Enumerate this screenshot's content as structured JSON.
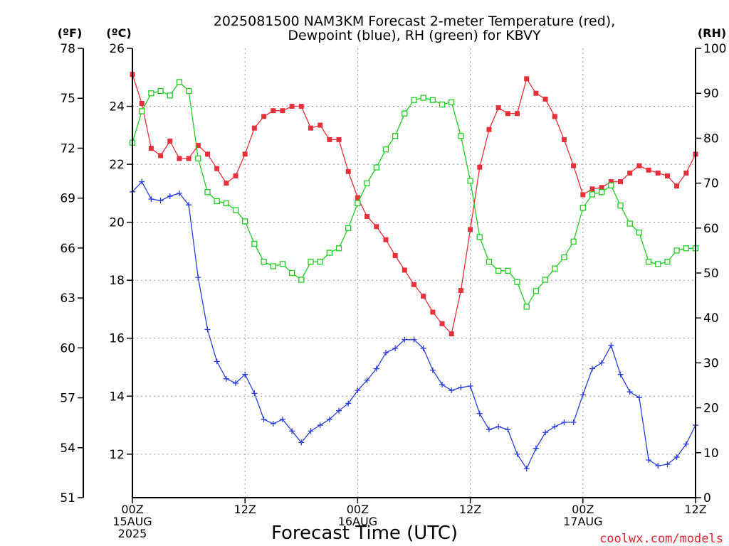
{
  "title_line1": "2025081500 NAM3KM Forecast 2-meter Temperature (red),",
  "title_line2": "Dewpoint (blue), RH (green) for KBVY",
  "unit_f": "(ºF)",
  "unit_c": "(ºC)",
  "unit_rh": "(RH)",
  "credit": "coolwx.com/models",
  "credit_color": "#e0242c",
  "chart_data": {
    "type": "line",
    "title": "2025081500 NAM3KM Forecast 2-meter Temperature (red), Dewpoint (blue), RH (green) for KBVY",
    "xlabel": "Forecast Time (UTC)",
    "x_range_hours": [
      0,
      60
    ],
    "x_ticks": [
      {
        "hour": 0,
        "lines": [
          "00Z",
          "15AUG",
          "2025"
        ]
      },
      {
        "hour": 12,
        "lines": [
          "12Z"
        ]
      },
      {
        "hour": 24,
        "lines": [
          "00Z",
          "16AUG"
        ]
      },
      {
        "hour": 36,
        "lines": [
          "12Z"
        ]
      },
      {
        "hour": 48,
        "lines": [
          "00Z",
          "17AUG"
        ]
      },
      {
        "hour": 60,
        "lines": [
          "12Z"
        ]
      }
    ],
    "y_left_c": {
      "label": "(ºC)",
      "range": [
        10.5,
        26
      ],
      "ticks": [
        12,
        14,
        16,
        18,
        20,
        22,
        24,
        26
      ]
    },
    "y_left_f": {
      "label": "(ºF)",
      "range": [
        51,
        78
      ],
      "ticks": [
        51,
        54,
        57,
        60,
        63,
        66,
        69,
        72,
        75,
        78
      ]
    },
    "y_right_rh": {
      "label": "(RH)",
      "range": [
        0,
        100
      ],
      "ticks": [
        0,
        10,
        20,
        30,
        40,
        50,
        60,
        70,
        80,
        90,
        100
      ]
    },
    "grid": true,
    "series": [
      {
        "name": "Temperature",
        "axis": "c",
        "color": "#e8303a",
        "marker": "filled-square",
        "values": [
          25.1,
          24.1,
          22.55,
          22.3,
          22.8,
          22.2,
          22.2,
          22.65,
          22.35,
          21.85,
          21.35,
          21.6,
          22.35,
          23.25,
          23.65,
          23.85,
          23.85,
          24.0,
          24.0,
          23.25,
          23.35,
          22.85,
          22.85,
          21.75,
          20.85,
          20.2,
          19.85,
          19.4,
          18.85,
          18.35,
          17.85,
          17.45,
          16.9,
          16.5,
          16.15,
          17.65,
          19.75,
          21.9,
          23.2,
          23.95,
          23.75,
          23.75,
          24.95,
          24.45,
          24.25,
          23.65,
          22.85,
          21.95,
          20.95,
          21.15,
          21.2,
          21.4,
          21.4,
          21.7,
          21.95,
          21.8,
          21.7,
          21.6,
          21.25,
          21.7,
          22.35
        ]
      },
      {
        "name": "Dewpoint",
        "axis": "c",
        "color": "#2a3fdc",
        "marker": "plus",
        "values": [
          21.05,
          21.4,
          20.8,
          20.75,
          20.9,
          21.0,
          20.6,
          18.1,
          16.3,
          15.2,
          14.6,
          14.45,
          14.75,
          14.1,
          13.2,
          13.05,
          13.2,
          12.8,
          12.4,
          12.8,
          13.0,
          13.2,
          13.5,
          13.75,
          14.2,
          14.55,
          14.95,
          15.5,
          15.65,
          15.95,
          15.95,
          15.65,
          14.9,
          14.4,
          14.2,
          14.3,
          14.35,
          13.4,
          12.85,
          12.95,
          12.85,
          12.0,
          11.5,
          12.2,
          12.75,
          12.95,
          13.1,
          13.1,
          14.05,
          14.95,
          15.15,
          15.75,
          14.75,
          14.15,
          13.95,
          11.8,
          11.6,
          11.65,
          11.9,
          12.35,
          13.0
        ]
      },
      {
        "name": "RH",
        "axis": "rh",
        "color": "#22cc22",
        "marker": "open-square",
        "values": [
          79,
          86,
          90,
          90.5,
          89.5,
          92.5,
          90.5,
          75.5,
          68,
          66,
          65.5,
          64,
          61.5,
          56.5,
          52.5,
          51.5,
          52,
          50,
          48.5,
          52.5,
          52.5,
          54.5,
          55.5,
          60,
          65.5,
          70,
          73.5,
          77.5,
          80.5,
          85.5,
          88.5,
          89,
          88.5,
          87.5,
          88,
          80.5,
          70.5,
          58,
          52.5,
          50.5,
          50.5,
          48,
          42.5,
          46,
          48.5,
          51,
          53.5,
          57,
          64.5,
          67.5,
          68,
          69.5,
          65,
          61,
          59,
          52.5,
          52,
          52.5,
          55,
          55.5,
          55.5
        ]
      }
    ]
  }
}
